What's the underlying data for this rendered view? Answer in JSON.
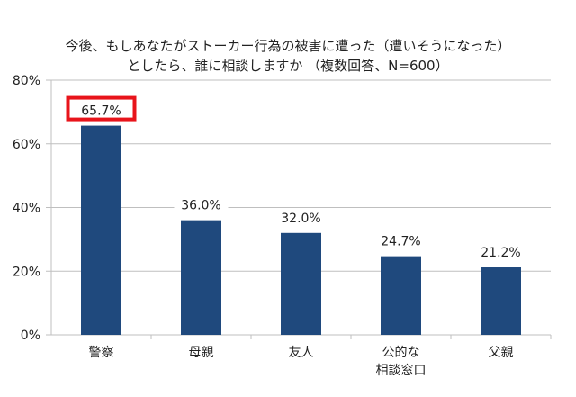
{
  "chart_data": {
    "type": "bar",
    "title_lines": [
      "今後、もしあなたがストーカー行為の被害に遭った（遭いそうになった）",
      "としたら、誰に相談しますか （複数回答、N=600）"
    ],
    "categories": [
      [
        "警察"
      ],
      [
        "母親"
      ],
      [
        "友人"
      ],
      [
        "公的な",
        "相談窓口"
      ],
      [
        "父親"
      ]
    ],
    "values": [
      65.7,
      36.0,
      32.0,
      24.7,
      21.2
    ],
    "data_labels": [
      "65.7%",
      "36.0%",
      "32.0%",
      "24.7%",
      "21.2%"
    ],
    "yticks": [
      "0%",
      "20%",
      "40%",
      "60%",
      "80%"
    ],
    "ylim": [
      0,
      80
    ],
    "grid": true,
    "highlighted_label_index": 0,
    "colors": {
      "bar": "#1F497D",
      "highlight": "#E8141B",
      "grid": "#BFBFBF"
    }
  }
}
